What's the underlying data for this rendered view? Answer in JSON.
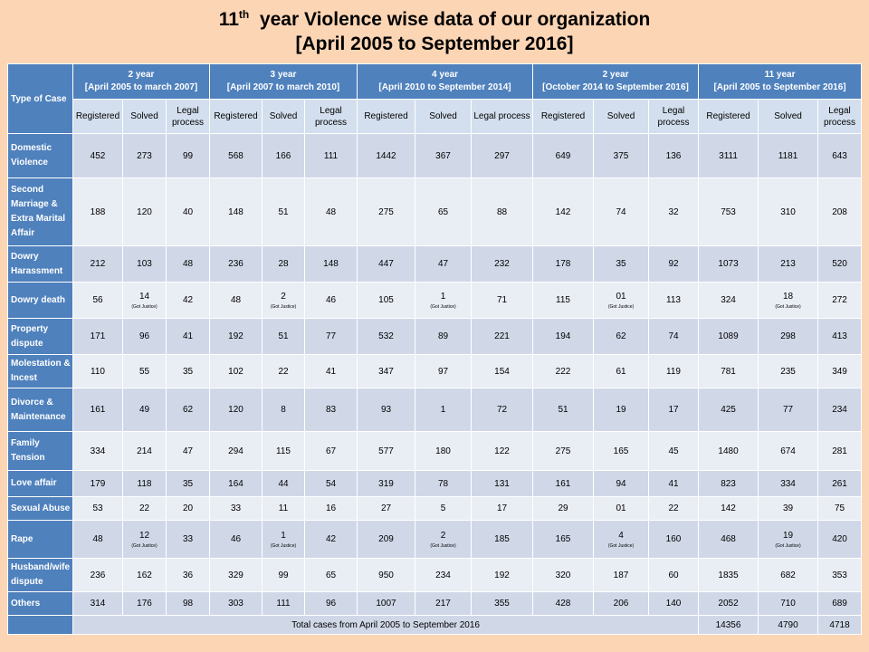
{
  "title": {
    "line1_prefix": "11",
    "line1_sup": "th",
    "line1_rest": "  year Violence wise data of our organization",
    "line2": "[April 2005 to September 2016]"
  },
  "table": {
    "type_header": "Type of Case",
    "groups": [
      {
        "title": "2 year",
        "period": "[April  2005 to march 2007]"
      },
      {
        "title": "3 year",
        "period": "[April  2007 to march 2010]"
      },
      {
        "title": "4 year",
        "period": "[April  2010 to September 2014]"
      },
      {
        "title": "2 year",
        "period": "[October 2014 to September 2016]"
      },
      {
        "title": "11 year",
        "period": "[April 2005 to September 2016]"
      }
    ],
    "subheaders": [
      [
        "Registered",
        "Solved",
        "Legal process"
      ],
      [
        "Registered",
        "Solved",
        "Legal process"
      ],
      [
        "Registered",
        "Solved",
        "Legal process"
      ],
      [
        "Registered",
        "Solved",
        "Legal process"
      ],
      [
        "Registered",
        "Solved",
        "Legal process"
      ]
    ],
    "rows": [
      {
        "label": "Domestic Violence",
        "cells": [
          "452",
          "273",
          "99",
          "568",
          "166",
          "111",
          "1442",
          "367",
          "297",
          "649",
          "375",
          "136",
          "3111",
          "1181",
          "643"
        ],
        "notes": [
          "",
          "",
          "",
          "",
          "",
          "",
          "",
          "",
          "",
          "",
          "",
          "",
          "",
          "",
          ""
        ]
      },
      {
        "label": "Second Marriage & Extra Marital Affair",
        "cells": [
          "188",
          "120",
          "40",
          "148",
          "51",
          "48",
          "275",
          "65",
          "88",
          "142",
          "74",
          "32",
          "753",
          "310",
          "208"
        ],
        "notes": [
          "",
          "",
          "",
          "",
          "",
          "",
          "",
          "",
          "",
          "",
          "",
          "",
          "",
          "",
          ""
        ]
      },
      {
        "label": "Dowry Harassment",
        "cells": [
          "212",
          "103",
          "48",
          "236",
          "28",
          "148",
          "447",
          "47",
          "232",
          "178",
          "35",
          "92",
          "1073",
          "213",
          "520"
        ],
        "notes": [
          "",
          "",
          "",
          "",
          "",
          "",
          "",
          "",
          "",
          "",
          "",
          "",
          "",
          "",
          ""
        ]
      },
      {
        "label": "Dowry death",
        "cells": [
          "56",
          "14",
          "42",
          "48",
          "2",
          "46",
          "105",
          "1",
          "71",
          "115",
          "01",
          "113",
          "324",
          "18",
          "272"
        ],
        "notes": [
          "",
          "(Got Justice)",
          "",
          "",
          "(Got Justice)",
          "",
          "",
          "(Got Justice)",
          "",
          "",
          "(Got Justice)",
          "",
          "",
          "(Got Justice)",
          ""
        ]
      },
      {
        "label": "Property dispute",
        "cells": [
          "171",
          "96",
          "41",
          "192",
          "51",
          "77",
          "532",
          "89",
          "221",
          "194",
          "62",
          "74",
          "1089",
          "298",
          "413"
        ],
        "notes": [
          "",
          "",
          "",
          "",
          "",
          "",
          "",
          "",
          "",
          "",
          "",
          "",
          "",
          "",
          ""
        ]
      },
      {
        "label": "Molestation & Incest",
        "cells": [
          "110",
          "55",
          "35",
          "102",
          "22",
          "41",
          "347",
          "97",
          "154",
          "222",
          "61",
          "119",
          "781",
          "235",
          "349"
        ],
        "notes": [
          "",
          "",
          "",
          "",
          "",
          "",
          "",
          "",
          "",
          "",
          "",
          "",
          "",
          "",
          ""
        ]
      },
      {
        "label": "Divorce & Maintenance",
        "cells": [
          "161",
          "49",
          "62",
          "120",
          "8",
          "83",
          "93",
          "1",
          "72",
          "51",
          "19",
          "17",
          "425",
          "77",
          "234"
        ],
        "notes": [
          "",
          "",
          "",
          "",
          "",
          "",
          "",
          "",
          "",
          "",
          "",
          "",
          "",
          "",
          ""
        ]
      },
      {
        "label": "Family Tension",
        "cells": [
          "334",
          "214",
          "47",
          "294",
          "115",
          "67",
          "577",
          "180",
          "122",
          "275",
          "165",
          "45",
          "1480",
          "674",
          "281"
        ],
        "notes": [
          "",
          "",
          "",
          "",
          "",
          "",
          "",
          "",
          "",
          "",
          "",
          "",
          "",
          "",
          ""
        ]
      },
      {
        "label": "Love affair",
        "cells": [
          "179",
          "118",
          "35",
          "164",
          "44",
          "54",
          "319",
          "78",
          "131",
          "161",
          "94",
          "41",
          "823",
          "334",
          "261"
        ],
        "notes": [
          "",
          "",
          "",
          "",
          "",
          "",
          "",
          "",
          "",
          "",
          "",
          "",
          "",
          "",
          ""
        ]
      },
      {
        "label": "Sexual Abuse",
        "cells": [
          "53",
          "22",
          "20",
          "33",
          "11",
          "16",
          "27",
          "5",
          "17",
          "29",
          "01",
          "22",
          "142",
          "39",
          "75"
        ],
        "notes": [
          "",
          "",
          "",
          "",
          "",
          "",
          "",
          "",
          "",
          "",
          "",
          "",
          "",
          "",
          ""
        ]
      },
      {
        "label": "Rape",
        "cells": [
          "48",
          "12",
          "33",
          "46",
          "1",
          "42",
          "209",
          "2",
          "185",
          "165",
          "4",
          "160",
          "468",
          "19",
          "420"
        ],
        "notes": [
          "",
          "(Got Justice)",
          "",
          "",
          "(Got Justice)",
          "",
          "",
          "(Got Justice)",
          "",
          "",
          "(Got Justice)",
          "",
          "",
          "(Got Justice)",
          ""
        ]
      },
      {
        "label": "Husband/wife dispute",
        "cells": [
          "236",
          "162",
          "36",
          "329",
          "99",
          "65",
          "950",
          "234",
          "192",
          "320",
          "187",
          "60",
          "1835",
          "682",
          "353"
        ],
        "notes": [
          "",
          "",
          "",
          "",
          "",
          "",
          "",
          "",
          "",
          "",
          "",
          "",
          "",
          "",
          ""
        ]
      },
      {
        "label": "Others",
        "cells": [
          "314",
          "176",
          "98",
          "303",
          "111",
          "96",
          "1007",
          "217",
          "355",
          "428",
          "206",
          "140",
          "2052",
          "710",
          "689"
        ],
        "notes": [
          "",
          "",
          "",
          "",
          "",
          "",
          "",
          "",
          "",
          "",
          "",
          "",
          "",
          "",
          ""
        ]
      }
    ],
    "total": {
      "label": "Total cases from April 2005 to September 2016",
      "values": [
        "14356",
        "4790",
        "4718"
      ]
    }
  },
  "colors": {
    "background": "#FCD5B5",
    "header_blue": "#4F81BD",
    "band_dark": "#D0D8E8",
    "band_light": "#E9EDF4"
  }
}
